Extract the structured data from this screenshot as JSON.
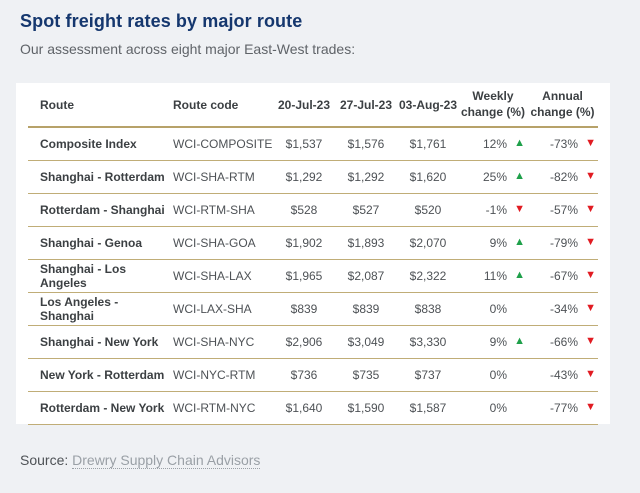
{
  "page": {
    "title": "Spot freight rates by major route",
    "subtitle": "Our assessment across eight major East-West trades:",
    "source_label": "Source:",
    "source_link_text": "Drewry Supply Chain Advisors"
  },
  "colors": {
    "title_navy": "#15376e",
    "gold_divider": "#b7a269",
    "up_green": "#1fa04a",
    "down_red": "#e11b22",
    "page_bg": "#eff1f4",
    "card_bg": "#ffffff"
  },
  "table": {
    "columns": [
      "Route",
      "Route code",
      "20-Jul-23",
      "27-Jul-23",
      "03-Aug-23",
      "Weekly change (%)",
      "Annual change (%)"
    ],
    "rows": [
      {
        "route": "Composite Index",
        "code": "WCI-COMPOSITE",
        "prices": [
          "$1,537",
          "$1,576",
          "$1,761"
        ],
        "weekly": {
          "value": "12%",
          "dir": "up"
        },
        "annual": {
          "value": "-73%",
          "dir": "down"
        }
      },
      {
        "route": "Shanghai - Rotterdam",
        "code": "WCI-SHA-RTM",
        "prices": [
          "$1,292",
          "$1,292",
          "$1,620"
        ],
        "weekly": {
          "value": "25%",
          "dir": "up"
        },
        "annual": {
          "value": "-82%",
          "dir": "down"
        }
      },
      {
        "route": "Rotterdam - Shanghai",
        "code": "WCI-RTM-SHA",
        "prices": [
          "$528",
          "$527",
          "$520"
        ],
        "weekly": {
          "value": "-1%",
          "dir": "down"
        },
        "annual": {
          "value": "-57%",
          "dir": "down"
        }
      },
      {
        "route": "Shanghai - Genoa",
        "code": "WCI-SHA-GOA",
        "prices": [
          "$1,902",
          "$1,893",
          "$2,070"
        ],
        "weekly": {
          "value": "9%",
          "dir": "up"
        },
        "annual": {
          "value": "-79%",
          "dir": "down"
        }
      },
      {
        "route": "Shanghai - Los Angeles",
        "code": "WCI-SHA-LAX",
        "prices": [
          "$1,965",
          "$2,087",
          "$2,322"
        ],
        "weekly": {
          "value": "11%",
          "dir": "up"
        },
        "annual": {
          "value": "-67%",
          "dir": "down"
        }
      },
      {
        "route": "Los Angeles - Shanghai",
        "code": "WCI-LAX-SHA",
        "prices": [
          "$839",
          "$839",
          "$838"
        ],
        "weekly": {
          "value": "0%",
          "dir": "none"
        },
        "annual": {
          "value": "-34%",
          "dir": "down"
        }
      },
      {
        "route": "Shanghai - New York",
        "code": "WCI-SHA-NYC",
        "prices": [
          "$2,906",
          "$3,049",
          "$3,330"
        ],
        "weekly": {
          "value": "9%",
          "dir": "up"
        },
        "annual": {
          "value": "-66%",
          "dir": "down"
        }
      },
      {
        "route": "New York - Rotterdam",
        "code": "WCI-NYC-RTM",
        "prices": [
          "$736",
          "$735",
          "$737"
        ],
        "weekly": {
          "value": "0%",
          "dir": "none"
        },
        "annual": {
          "value": "-43%",
          "dir": "down"
        }
      },
      {
        "route": "Rotterdam - New York",
        "code": "WCI-RTM-NYC",
        "prices": [
          "$1,640",
          "$1,590",
          "$1,587"
        ],
        "weekly": {
          "value": "0%",
          "dir": "none"
        },
        "annual": {
          "value": "-77%",
          "dir": "down"
        }
      }
    ]
  },
  "chart_data": {
    "type": "table",
    "title": "Spot freight rates by major route",
    "subtitle": "Our assessment across eight major East-West trades:",
    "columns": [
      "Route",
      "Route code",
      "20-Jul-23",
      "27-Jul-23",
      "03-Aug-23",
      "Weekly change (%)",
      "Annual change (%)"
    ],
    "rows": [
      [
        "Composite Index",
        "WCI-COMPOSITE",
        1537,
        1576,
        1761,
        "12% up",
        "-73% down"
      ],
      [
        "Shanghai - Rotterdam",
        "WCI-SHA-RTM",
        1292,
        1292,
        1620,
        "25% up",
        "-82% down"
      ],
      [
        "Rotterdam - Shanghai",
        "WCI-RTM-SHA",
        528,
        527,
        520,
        "-1% down",
        "-57% down"
      ],
      [
        "Shanghai - Genoa",
        "WCI-SHA-GOA",
        1902,
        1893,
        2070,
        "9% up",
        "-79% down"
      ],
      [
        "Shanghai - Los Angeles",
        "WCI-SHA-LAX",
        1965,
        2087,
        2322,
        "11% up",
        "-67% down"
      ],
      [
        "Los Angeles - Shanghai",
        "WCI-LAX-SHA",
        839,
        839,
        838,
        "0%",
        "-34% down"
      ],
      [
        "Shanghai - New York",
        "WCI-SHA-NYC",
        2906,
        3049,
        3330,
        "9% up",
        "-66% down"
      ],
      [
        "New York - Rotterdam",
        "WCI-NYC-RTM",
        736,
        735,
        737,
        "0%",
        "-43% down"
      ],
      [
        "Rotterdam - New York",
        "WCI-RTM-NYC",
        1640,
        1590,
        1587,
        "0%",
        "-77% down"
      ]
    ],
    "source": "Drewry Supply Chain Advisors"
  }
}
